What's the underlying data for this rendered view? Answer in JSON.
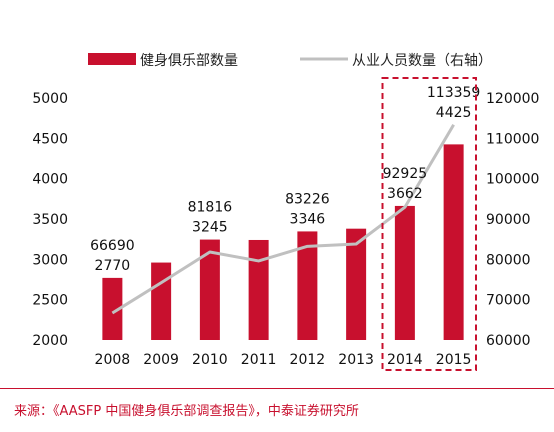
{
  "chart_data": {
    "type": "bar",
    "categories": [
      "2008",
      "2009",
      "2010",
      "2011",
      "2012",
      "2013",
      "2014",
      "2015"
    ],
    "series": [
      {
        "name": "健身俱乐部数量",
        "type": "bar",
        "axis": "left",
        "values": [
          2770,
          2960,
          3245,
          3240,
          3346,
          3380,
          3662,
          4425
        ],
        "labels": [
          "2770",
          "",
          "3245",
          "",
          "3346",
          "",
          "3662",
          "4425"
        ]
      },
      {
        "name": "从业人员数量（右轴）",
        "type": "line",
        "axis": "right",
        "values": [
          66690,
          74200,
          81816,
          79600,
          83226,
          83800,
          92925,
          113359
        ],
        "labels": [
          "66690",
          "",
          "81816",
          "",
          "83226",
          "",
          "92925",
          "113359"
        ]
      }
    ],
    "y_left": {
      "min": 2000,
      "max": 5000,
      "ticks": [
        "2000",
        "2500",
        "3000",
        "3500",
        "4000",
        "4500",
        "5000"
      ]
    },
    "y_right": {
      "min": 60000,
      "max": 120000,
      "ticks": [
        "60000",
        "70000",
        "80000",
        "90000",
        "100000",
        "110000",
        "120000"
      ]
    },
    "highlight_categories": [
      "2014",
      "2015"
    ],
    "legend_position": "top",
    "grid": false
  },
  "colors": {
    "bar": "#c8102e",
    "line": "#c0c0c0",
    "highlight": "#c8102e",
    "source": "#c8102e"
  },
  "source": "来源：《AASFP 中国健身俱乐部调查报告》，中泰证券研究所"
}
